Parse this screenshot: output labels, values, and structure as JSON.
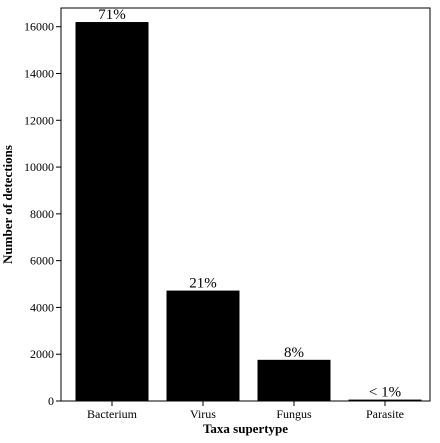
{
  "chart_data": {
    "type": "bar",
    "title": "",
    "xlabel": "Taxa supertype",
    "ylabel": "Number of detections",
    "categories": [
      "Bacterium",
      "Virus",
      "Fungus",
      "Parasite"
    ],
    "values": [
      16200,
      4720,
      1760,
      60
    ],
    "data_labels": [
      "71%",
      "21%",
      "8%",
      "< 1%"
    ],
    "ylim": [
      0,
      16800
    ],
    "yticks": [
      0,
      2000,
      4000,
      6000,
      8000,
      10000,
      12000,
      14000,
      16000
    ],
    "grid": false,
    "legend": "none",
    "bar_color": "#000000"
  }
}
